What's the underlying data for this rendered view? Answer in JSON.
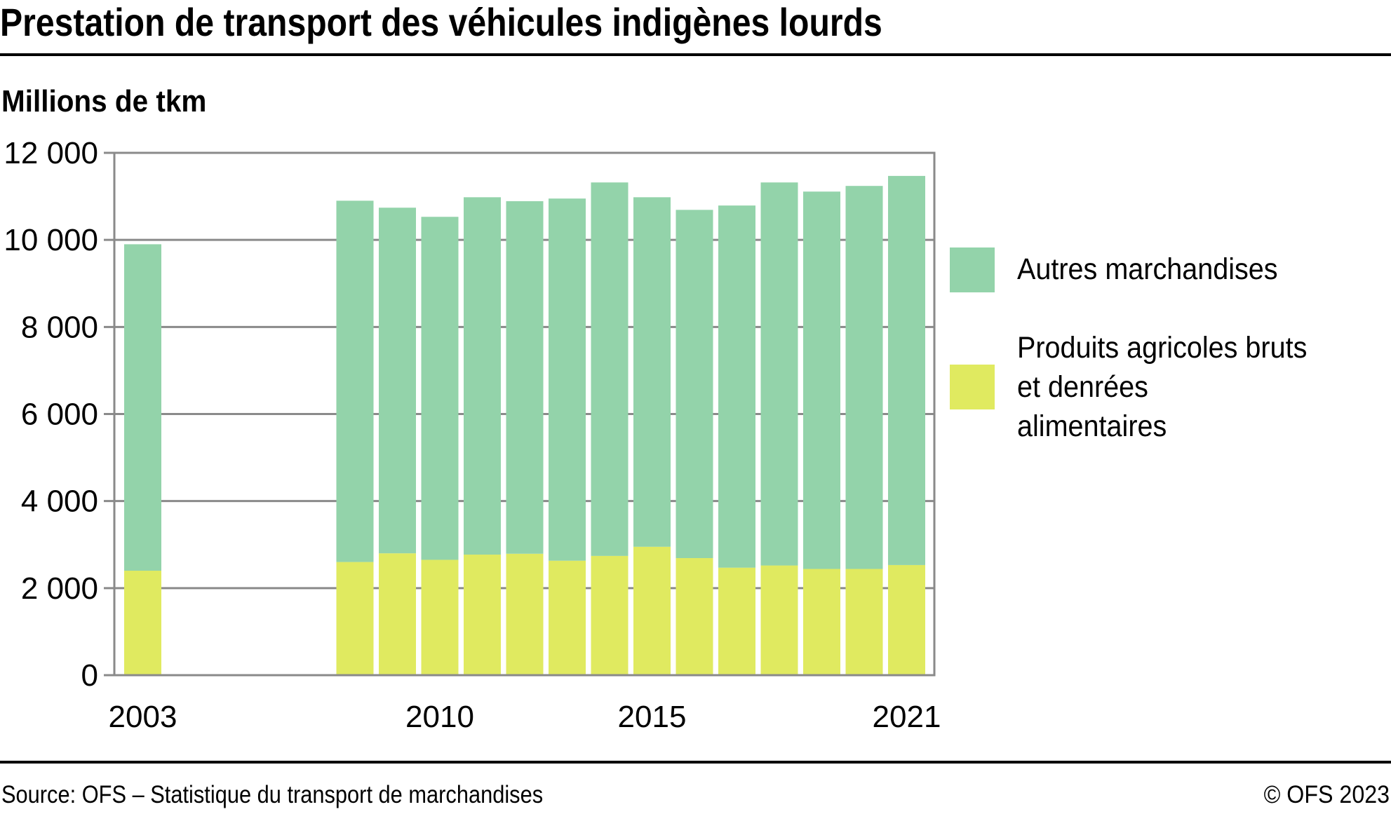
{
  "header": {
    "title": "Prestation de transport des véhicules indigènes lourds",
    "unit_label": "Millions de tkm"
  },
  "footer": {
    "source": "Source: OFS – Statistique du transport de marchandises",
    "copyright": "© OFS 2023"
  },
  "colors": {
    "autres": "#93d3aa",
    "agricoles": "#e0ea60",
    "grid": "#8a8a8a"
  },
  "chart_data": {
    "type": "bar",
    "stacked": true,
    "title": "Prestation de transport des véhicules indigènes lourds",
    "ylabel": "Millions de tkm",
    "xlabel": "",
    "ylim": [
      0,
      12000
    ],
    "yticks": [
      0,
      2000,
      4000,
      6000,
      8000,
      10000,
      12000
    ],
    "ytick_labels": [
      "0",
      "2 000",
      "4 000",
      "6 000",
      "8 000",
      "10 000",
      "12 000"
    ],
    "x_range": [
      2003,
      2021
    ],
    "xtick_labels": [
      "2003",
      "2010",
      "2015",
      "2021"
    ],
    "grid": true,
    "legend_position": "right",
    "categories": [
      2003,
      2008,
      2009,
      2010,
      2011,
      2012,
      2013,
      2014,
      2015,
      2016,
      2017,
      2018,
      2019,
      2020,
      2021
    ],
    "series": [
      {
        "name": "Produits agricoles bruts et denrées alimentaires",
        "legend_label": "Produits agricoles bruts\net denrées\nalimentaires",
        "color": "#e0ea60",
        "values": [
          2400,
          2600,
          2800,
          2650,
          2770,
          2790,
          2630,
          2740,
          2950,
          2690,
          2470,
          2520,
          2440,
          2440,
          2530
        ]
      },
      {
        "name": "Autres marchandises",
        "legend_label": "Autres marchandises",
        "color": "#93d3aa",
        "values": [
          7500,
          8300,
          7940,
          7880,
          8210,
          8100,
          8320,
          8580,
          8030,
          8000,
          8320,
          8800,
          8670,
          8800,
          8940
        ]
      }
    ],
    "totals": [
      9900,
      10900,
      10740,
      10530,
      10980,
      10890,
      10950,
      11320,
      10980,
      10690,
      10790,
      11320,
      11110,
      11240,
      11470
    ]
  }
}
